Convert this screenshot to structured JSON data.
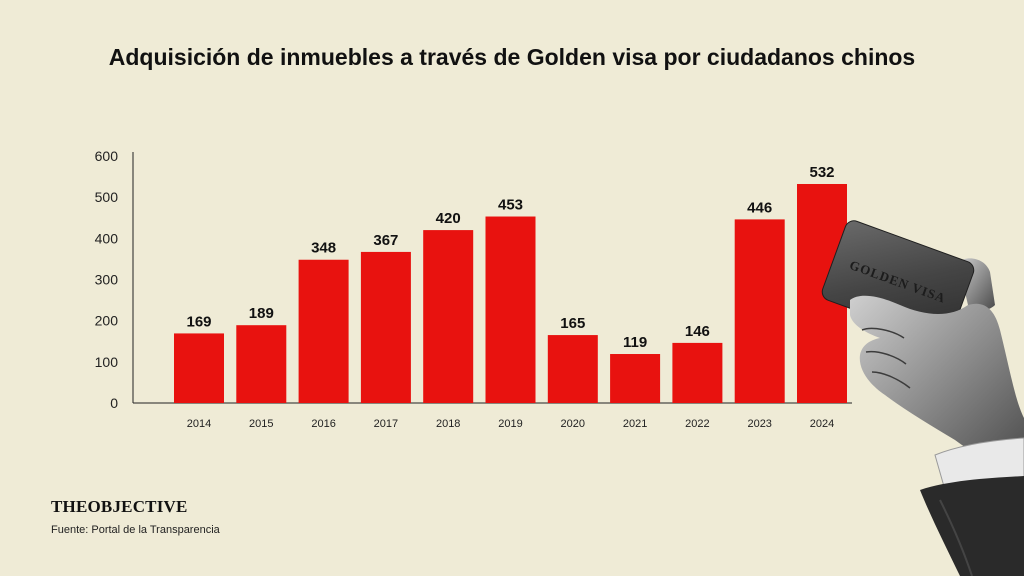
{
  "chart_data": {
    "type": "bar",
    "title": "Adquisición de inmuebles a través de Golden visa por ciudadanos chinos",
    "categories": [
      "2014",
      "2015",
      "2016",
      "2017",
      "2018",
      "2019",
      "2020",
      "2021",
      "2022",
      "2023",
      "2024"
    ],
    "values": [
      169,
      189,
      348,
      367,
      420,
      453,
      165,
      119,
      146,
      446,
      532
    ],
    "ylim": [
      0,
      600
    ],
    "yticks": [
      0,
      100,
      200,
      300,
      400,
      500,
      600
    ],
    "xlabel": "",
    "ylabel": "",
    "grid": false,
    "bar_color": "#e8120f",
    "data_labels": true
  },
  "footer": {
    "brand": "THEOBJECTIVE",
    "source": "Fuente: Portal de la Transparencia"
  },
  "illustration": {
    "card_text": "GOLDEN VISA",
    "icon": "hand-holding-card-icon"
  },
  "colors": {
    "background": "#efebd6",
    "bar": "#e8120f",
    "text": "#111111"
  }
}
